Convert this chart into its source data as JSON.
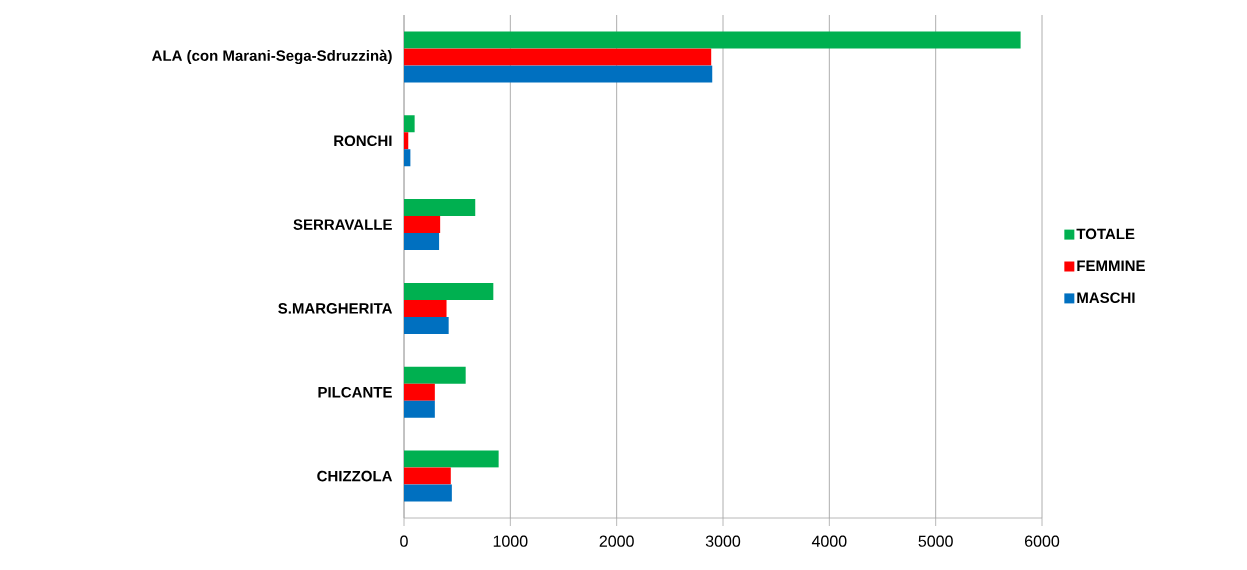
{
  "chart_data": {
    "type": "bar",
    "orientation": "horizontal",
    "categories": [
      "ALA (con Marani-Sega-Sdruzzinà)",
      "RONCHI",
      "SERRAVALLE",
      "S.MARGHERITA",
      "PILCANTE",
      "CHIZZOLA"
    ],
    "series": [
      {
        "name": "TOTALE",
        "color": "#00b050",
        "values": [
          5800,
          100,
          670,
          840,
          580,
          890
        ]
      },
      {
        "name": "FEMMINE",
        "color": "#ff0000",
        "values": [
          2890,
          40,
          340,
          400,
          290,
          440
        ]
      },
      {
        "name": "MASCHI",
        "color": "#0070c0",
        "values": [
          2900,
          60,
          330,
          420,
          290,
          450
        ]
      }
    ],
    "xlim": [
      0,
      6000
    ],
    "xticks": [
      0,
      1000,
      2000,
      3000,
      4000,
      5000,
      6000
    ],
    "grid": "x",
    "legend": "right"
  }
}
